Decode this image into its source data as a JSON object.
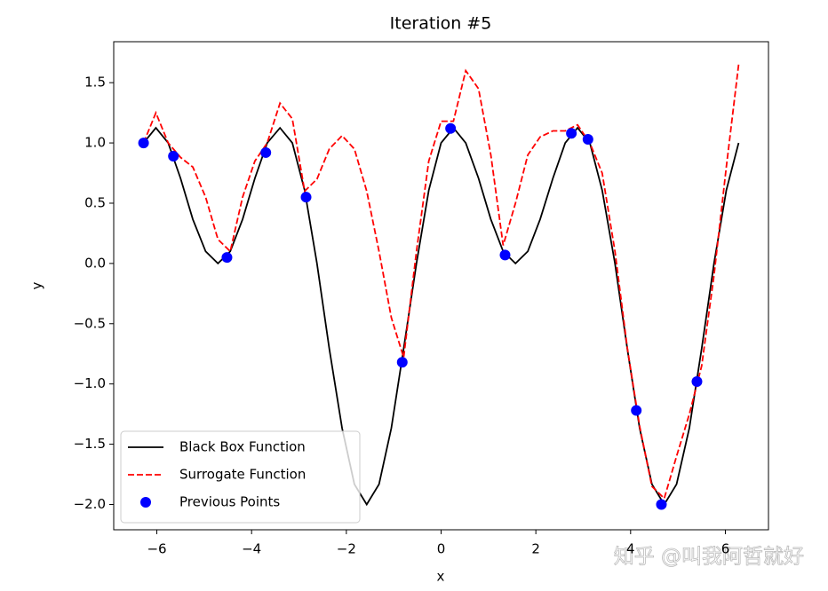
{
  "chart_data": {
    "type": "line",
    "title": "Iteration #5",
    "x_label": "x",
    "y_label": "y",
    "x": [
      -6.28,
      -6.02,
      -5.76,
      -5.5,
      -5.24,
      -4.97,
      -4.71,
      -4.45,
      -4.19,
      -3.93,
      -3.67,
      -3.4,
      -3.14,
      -2.88,
      -2.62,
      -2.36,
      -2.09,
      -1.83,
      -1.57,
      -1.31,
      -1.05,
      -0.79,
      -0.52,
      -0.26,
      0,
      0.26,
      0.52,
      0.79,
      1.05,
      1.31,
      1.57,
      1.83,
      2.09,
      2.36,
      2.62,
      2.88,
      3.14,
      3.4,
      3.67,
      3.93,
      4.19,
      4.45,
      4.71,
      4.97,
      5.24,
      5.5,
      5.76,
      6.02,
      6.28
    ],
    "series": [
      {
        "name": "Black Box Function",
        "color": "#000000",
        "style": "solid",
        "values": [
          1,
          1.125,
          1,
          0.707,
          0.366,
          0.1,
          0,
          0.1,
          0.366,
          0.707,
          1,
          1.125,
          1,
          0.607,
          0,
          -0.707,
          -1.366,
          -1.832,
          -2,
          -1.832,
          -1.366,
          -0.707,
          0,
          0.607,
          1,
          1.125,
          1,
          0.707,
          0.366,
          0.1,
          0,
          0.1,
          0.366,
          0.707,
          1,
          1.125,
          1,
          0.607,
          0,
          -0.707,
          -1.366,
          -1.832,
          -2,
          -1.832,
          -1.366,
          -0.707,
          0,
          0.607,
          1
        ]
      },
      {
        "name": "Surrogate Function",
        "color": "#ff0000",
        "style": "dashed",
        "values": [
          1.0,
          1.25,
          1.0,
          0.88,
          0.8,
          0.55,
          0.2,
          0.1,
          0.55,
          0.85,
          1.0,
          1.33,
          1.2,
          0.6,
          0.7,
          0.95,
          1.06,
          0.95,
          0.6,
          0.1,
          -0.45,
          -0.78,
          0.1,
          0.85,
          1.18,
          1.18,
          1.6,
          1.45,
          0.9,
          0.15,
          0.5,
          0.9,
          1.05,
          1.1,
          1.1,
          1.15,
          1.0,
          0.75,
          0.1,
          -0.7,
          -1.35,
          -1.85,
          -1.95,
          -1.6,
          -1.25,
          -0.85,
          -0.1,
          0.8,
          1.65
        ]
      },
      {
        "name": "Previous Points",
        "color": "#0000ff",
        "type": "scatter",
        "x": [
          -6.28,
          -5.65,
          -4.52,
          -3.7,
          -2.85,
          -0.82,
          0.2,
          1.35,
          2.75,
          3.1,
          4.12,
          4.65,
          5.4
        ],
        "values": [
          1.0,
          0.89,
          0.05,
          0.92,
          0.55,
          -0.82,
          1.12,
          0.07,
          1.08,
          1.03,
          -1.22,
          -2.0,
          -0.98
        ]
      }
    ],
    "xlim": [
      -6.91,
      6.91
    ],
    "ylim": [
      -2.21,
      1.84
    ],
    "xticks": [
      {
        "value": -6,
        "label": "−6"
      },
      {
        "value": -4,
        "label": "−4"
      },
      {
        "value": -2,
        "label": "−2"
      },
      0,
      2,
      4,
      6
    ],
    "yticks": [
      {
        "value": -2,
        "label": "−2.0"
      },
      {
        "value": -1.5,
        "label": "−1.5"
      },
      {
        "value": -1,
        "label": "−1.0"
      },
      {
        "value": -0.5,
        "label": "−0.5"
      },
      {
        "value": 0,
        "label": "0.0"
      },
      {
        "value": 0.5,
        "label": "0.5"
      },
      {
        "value": 1,
        "label": "1.0"
      },
      {
        "value": 1.5,
        "label": "1.5"
      }
    ],
    "legend": "lower left",
    "grid": false
  },
  "watermark": "知乎 @叫我阿哲就好"
}
